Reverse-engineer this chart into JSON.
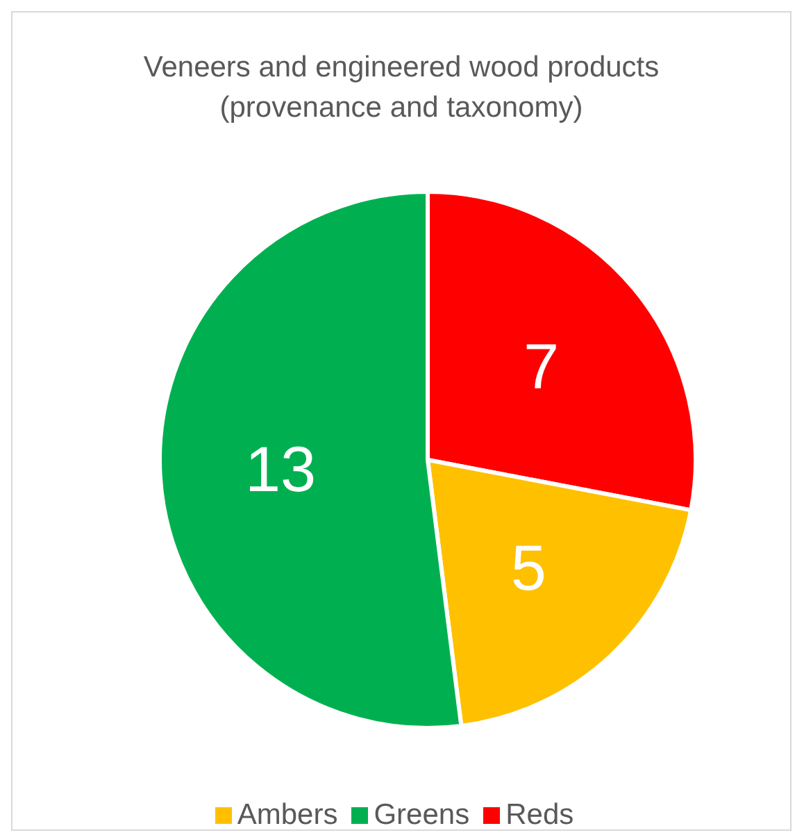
{
  "chart_data": {
    "type": "pie",
    "title": "Veneers and engineered wood products (provenance and taxonomy)",
    "categories": [
      "Reds",
      "Ambers",
      "Greens"
    ],
    "values": [
      7,
      5,
      13
    ],
    "colors": [
      "#ff0000",
      "#ffc000",
      "#00b050"
    ],
    "data_labels": true,
    "legend": "bottom"
  }
}
